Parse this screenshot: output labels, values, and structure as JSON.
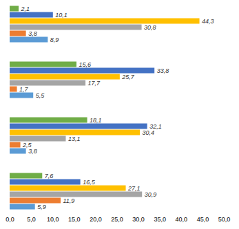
{
  "chart_data": {
    "type": "bar",
    "orientation": "horizontal",
    "categories": [
      null,
      null,
      null,
      null
    ],
    "series": [
      {
        "color": "#70ad47",
        "values": [
          2.1,
          15.6,
          18.1,
          7.6
        ],
        "value_labels": [
          "2,1",
          "15,6",
          "18,1",
          "7,6"
        ]
      },
      {
        "color": "#4472c4",
        "values": [
          10.1,
          33.8,
          32.1,
          16.5
        ],
        "value_labels": [
          "10,1",
          "33,8",
          "32,1",
          "16,5"
        ]
      },
      {
        "color": "#ffc000",
        "values": [
          44.3,
          25.7,
          30.4,
          27.1
        ],
        "value_labels": [
          "44,3",
          "25,7",
          "30,4",
          "27,1"
        ]
      },
      {
        "color": "#a5a5a5",
        "values": [
          30.8,
          17.7,
          13.1,
          30.9
        ],
        "value_labels": [
          "30,8",
          "17,7",
          "13,1",
          "30,9"
        ]
      },
      {
        "color": "#ed7d31",
        "values": [
          3.8,
          1.7,
          2.5,
          11.9
        ],
        "value_labels": [
          "3,8",
          "1,7",
          "2,5",
          "11,9"
        ]
      },
      {
        "color": "#5b9bd5",
        "values": [
          8.9,
          5.5,
          3.8,
          5.9
        ],
        "value_labels": [
          "8,9",
          "5,5",
          "3,8",
          "5,9"
        ]
      }
    ],
    "xlim": [
      0,
      50
    ],
    "xticks": [
      {
        "value": 0,
        "label": "0,0"
      },
      {
        "value": 5,
        "label": "5,0"
      },
      {
        "value": 10,
        "label": "10,0"
      },
      {
        "value": 15,
        "label": "15,0"
      },
      {
        "value": 20,
        "label": "20,0"
      },
      {
        "value": 25,
        "label": "25,0"
      },
      {
        "value": 30,
        "label": "30,0"
      },
      {
        "value": 35,
        "label": "35,0"
      },
      {
        "value": 40,
        "label": "40,0"
      },
      {
        "value": 45,
        "label": "45,0"
      },
      {
        "value": 50,
        "label": "50,0"
      }
    ],
    "grid": false,
    "data_labels": true
  }
}
